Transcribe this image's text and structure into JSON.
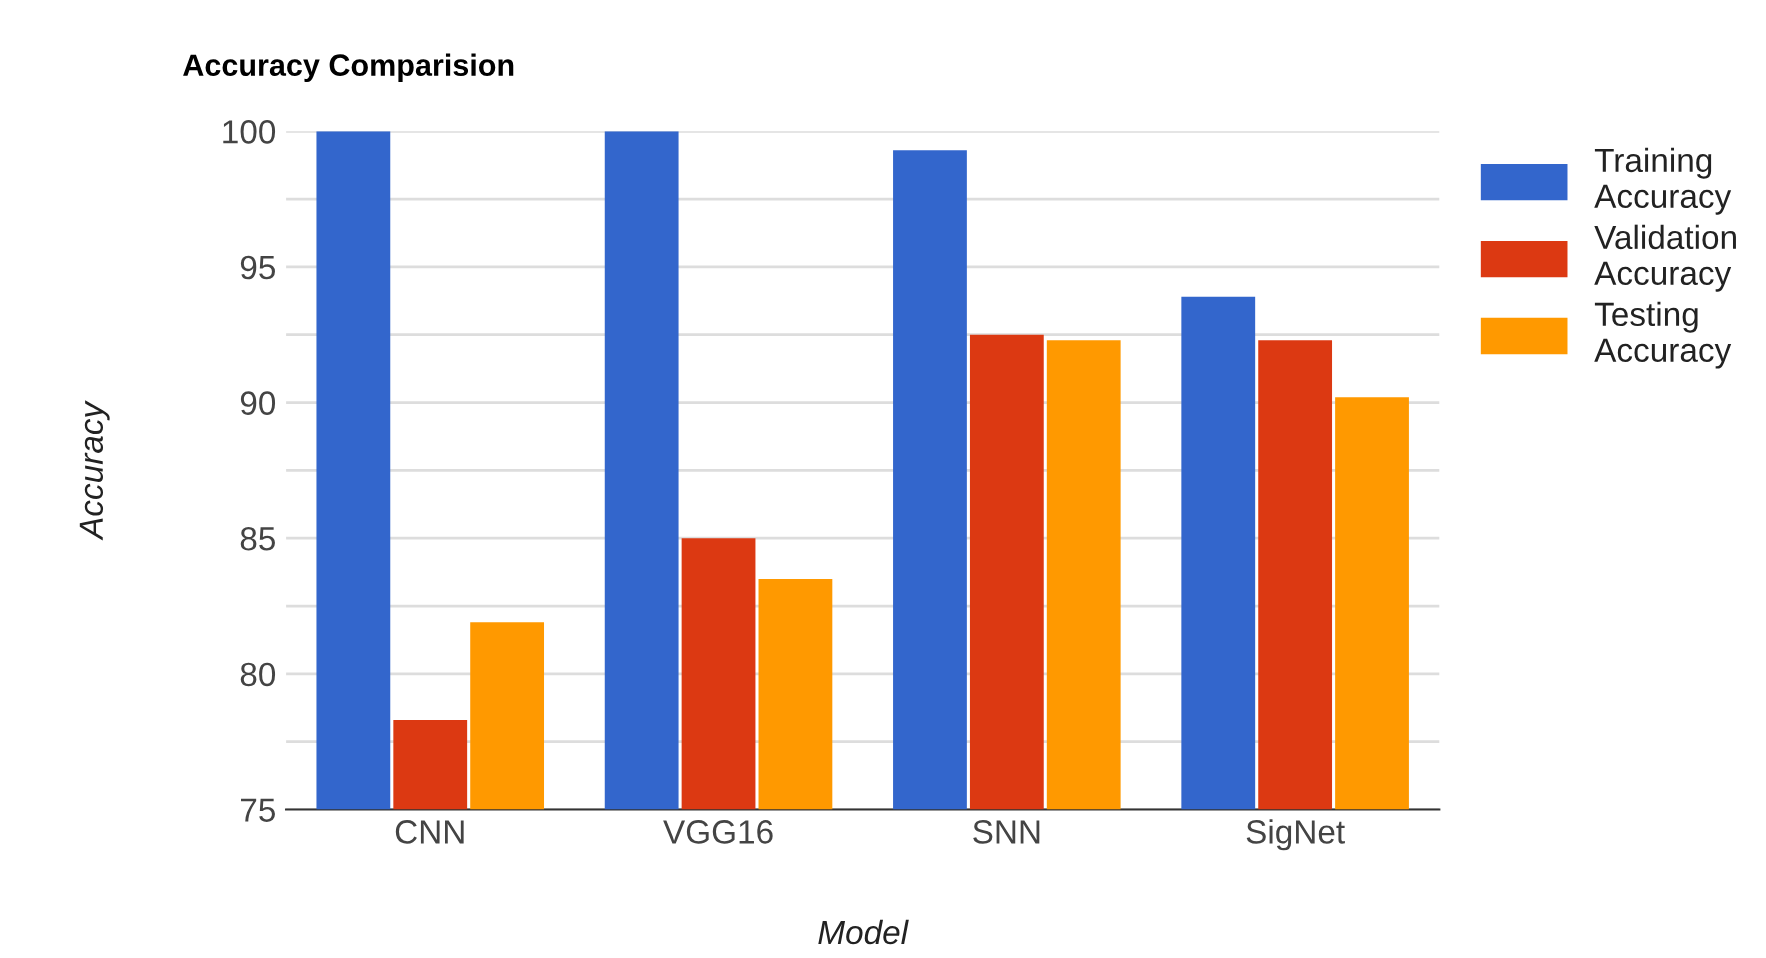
{
  "chart_data": {
    "type": "bar",
    "title": "Accuracy Comparision",
    "xlabel": "Model",
    "ylabel": "Accuracy",
    "categories": [
      "CNN",
      "VGG16",
      "SNN",
      "SigNet"
    ],
    "series": [
      {
        "name": "Training Accuracy",
        "color": "#3366cc",
        "values": [
          100,
          100,
          99.3,
          93.9
        ]
      },
      {
        "name": "Validation Accuracy",
        "color": "#dc3912",
        "values": [
          78.3,
          85.0,
          92.5,
          92.3
        ]
      },
      {
        "name": "Testing Accuracy",
        "color": "#ff9900",
        "values": [
          81.9,
          83.5,
          92.3,
          90.2
        ]
      }
    ],
    "ylim": [
      75,
      100
    ],
    "yticks": [
      75,
      {
        "value": 77.5,
        "label": null
      },
      80,
      {
        "value": 82.5,
        "label": null
      },
      85,
      {
        "value": 87.5,
        "label": null
      },
      90,
      {
        "value": 92.5,
        "label": null
      },
      95,
      {
        "value": 97.5,
        "label": null
      },
      100
    ],
    "grid": "y",
    "legend": "top right"
  }
}
